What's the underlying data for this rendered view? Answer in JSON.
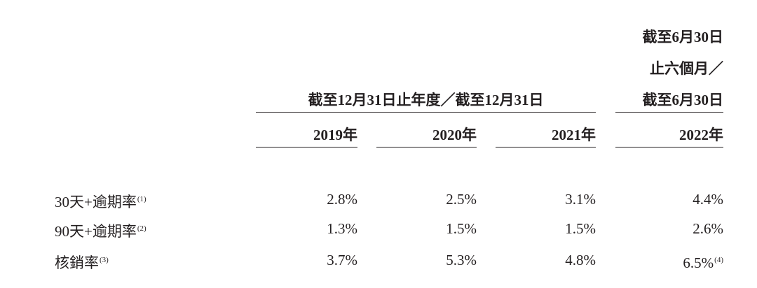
{
  "header": {
    "group_label": "截至12月31日止年度／截至12月31日",
    "interim_label": [
      "截至6月30日",
      "止六個月／",
      "截至6月30日"
    ]
  },
  "table": {
    "columns": [
      "2019年",
      "2020年",
      "2021年",
      "2022年"
    ],
    "rows": [
      {
        "label": "30天+逾期率",
        "note": "(1)",
        "cells": [
          "2.8%",
          "2.5%",
          "3.1%",
          "4.4%"
        ]
      },
      {
        "label": "90天+逾期率",
        "note": "(2)",
        "cells": [
          "1.3%",
          "1.5%",
          "1.5%",
          "2.6%"
        ]
      },
      {
        "label": "核銷率",
        "note": "(3)",
        "cells": [
          "3.7%",
          "5.3%",
          "4.8%",
          {
            "text": "6.5%",
            "note": "(4)"
          }
        ]
      }
    ]
  }
}
